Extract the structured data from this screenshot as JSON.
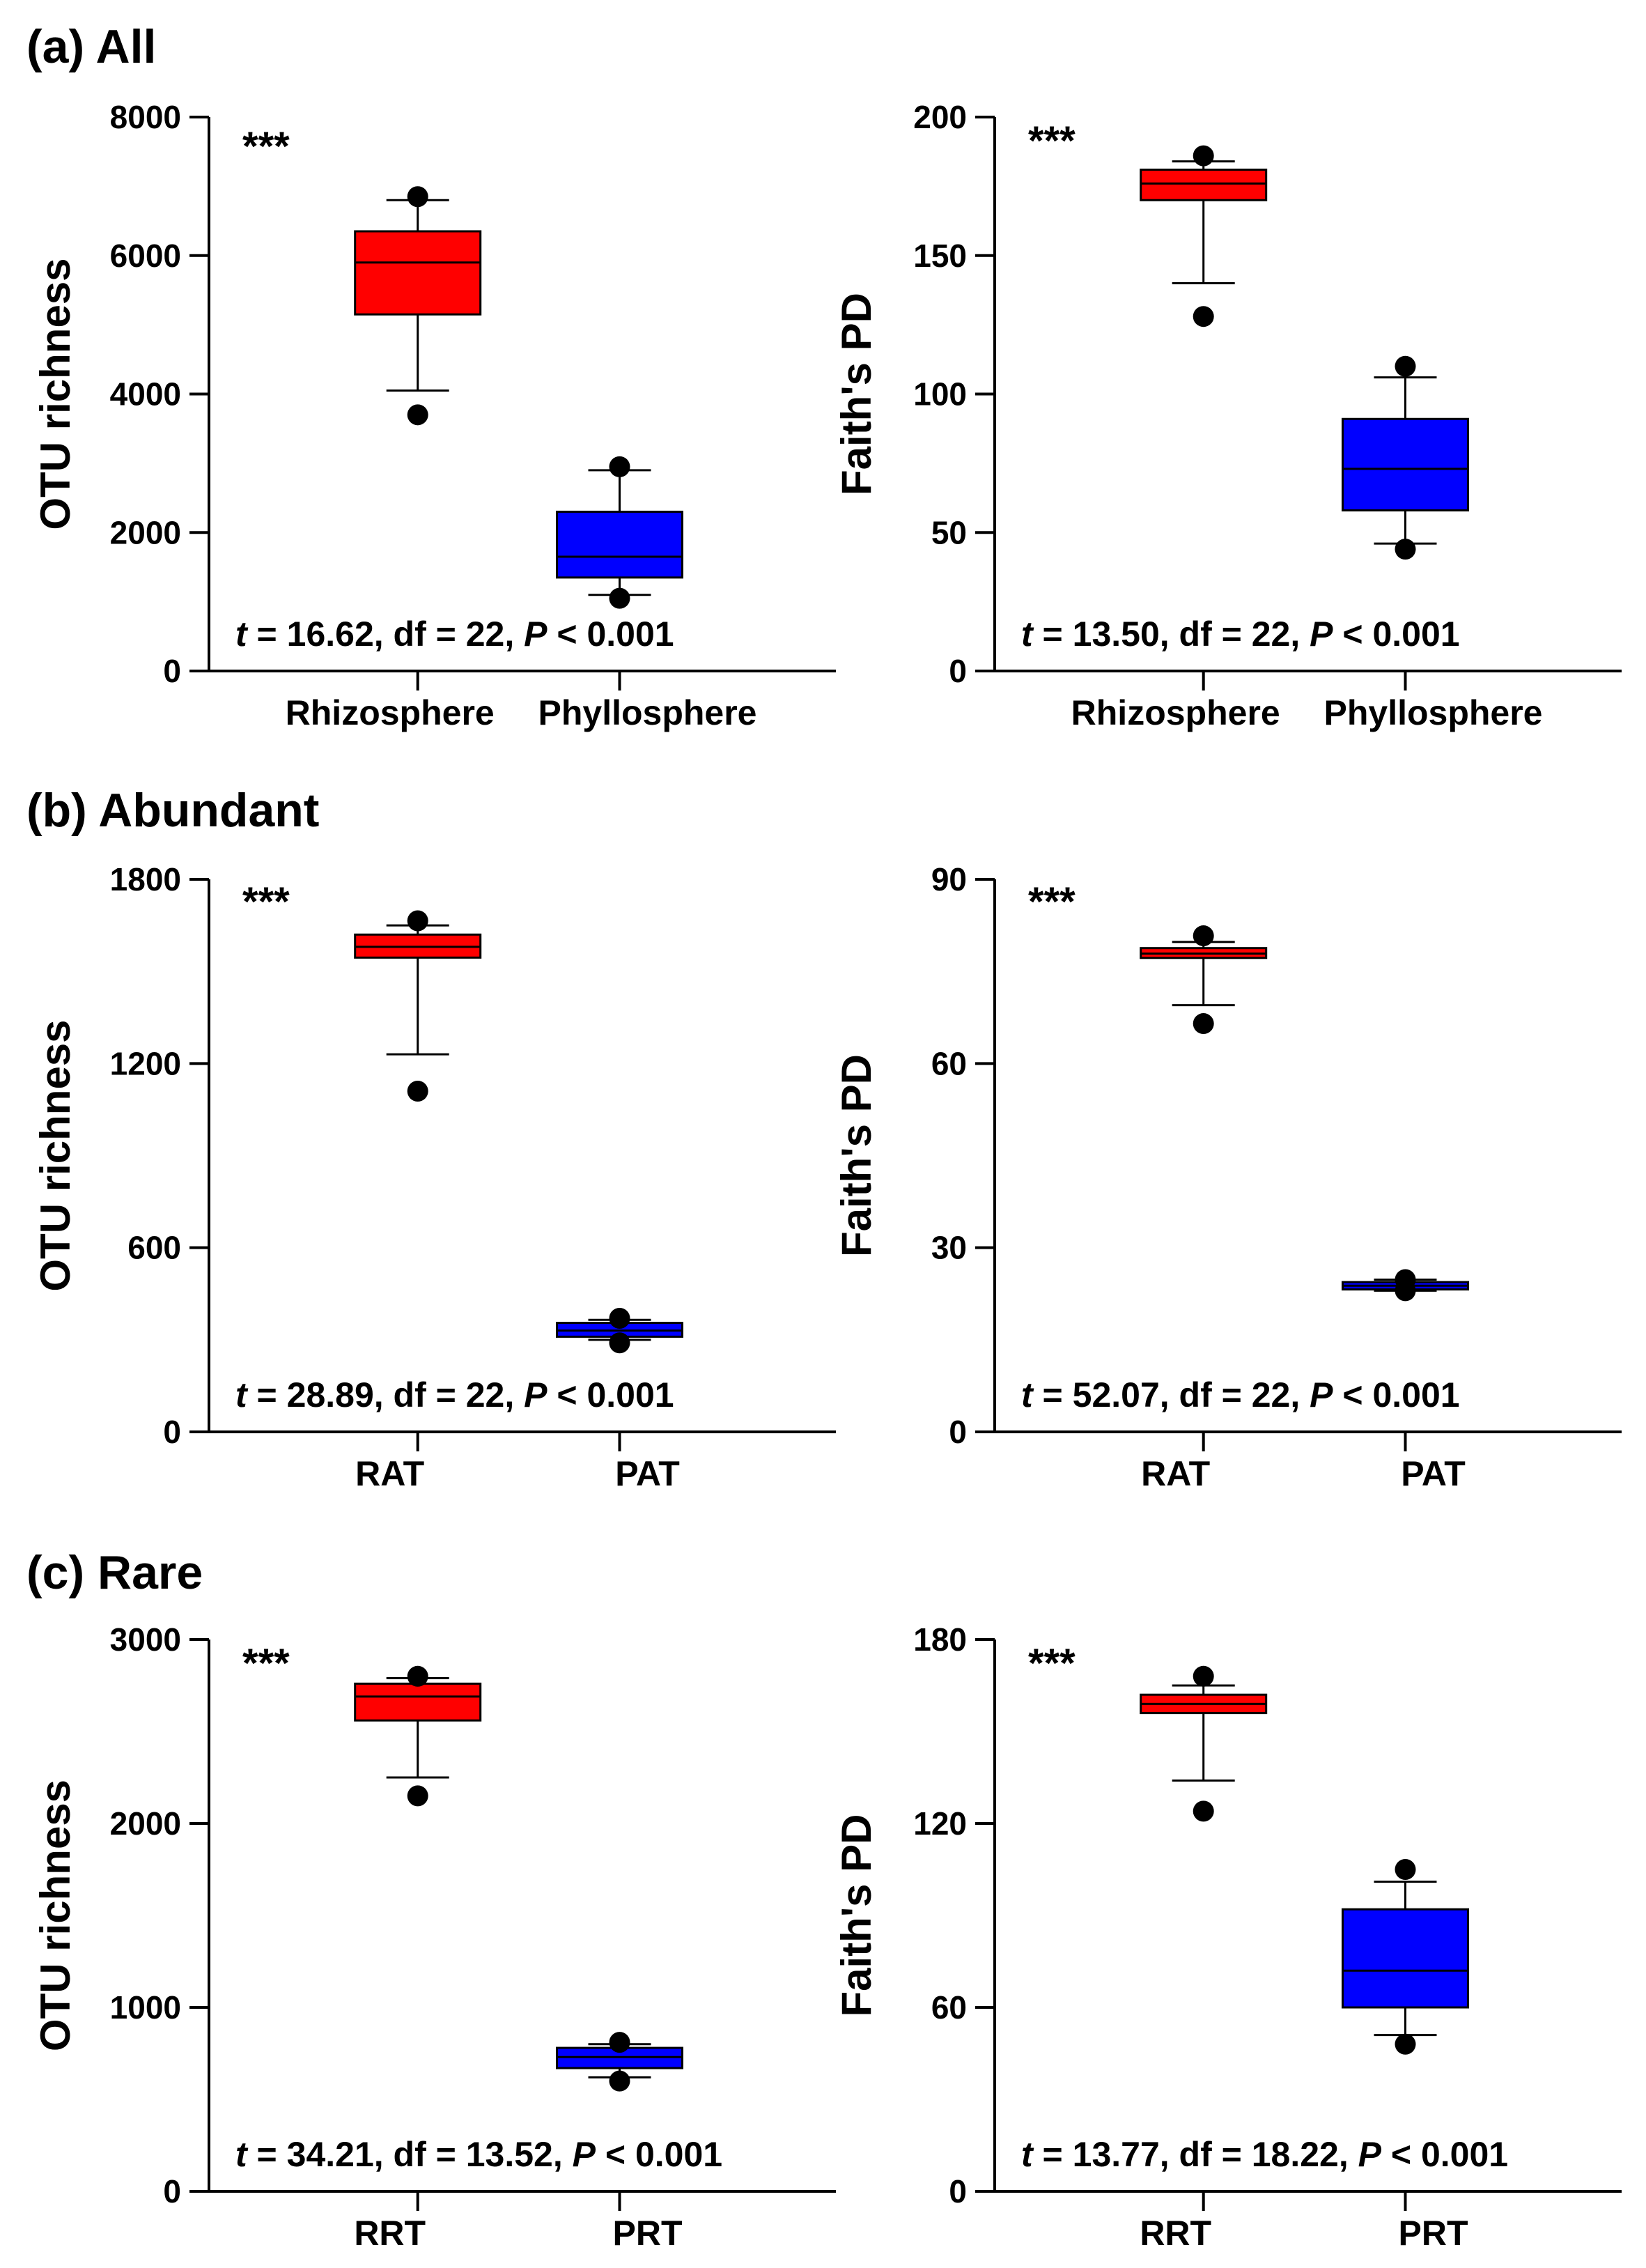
{
  "panels": [
    {
      "id": "a",
      "title": "(a) All"
    },
    {
      "id": "b",
      "title": "(b) Abundant"
    },
    {
      "id": "c",
      "title": "(c) Rare"
    }
  ],
  "colors": {
    "group1": "#ff0000",
    "group2": "#0000ff",
    "line": "#000000"
  },
  "chart_data": [
    {
      "type": "box",
      "panel": "a",
      "ylabel": "OTU richness",
      "ylim": [
        0,
        8000
      ],
      "yticks": [
        0,
        2000,
        4000,
        6000,
        8000
      ],
      "categories": [
        "Rhizosphere",
        "Phyllosphere"
      ],
      "boxes": [
        {
          "q1": 5150,
          "median": 5900,
          "q3": 6350,
          "whisker_low": 4050,
          "whisker_high": 6800,
          "outliers": [
            3700,
            6850
          ]
        },
        {
          "q1": 1350,
          "median": 1650,
          "q3": 2300,
          "whisker_low": 1100,
          "whisker_high": 2900,
          "outliers": [
            1050,
            2950
          ]
        }
      ],
      "significance": "***",
      "stat": {
        "t": "t",
        "t_value": " = 16.62, df = 22, ",
        "p": "P",
        "p_value": " < 0.001"
      }
    },
    {
      "type": "box",
      "panel": "a",
      "ylabel": "Faith's PD",
      "ylim": [
        0,
        200
      ],
      "yticks": [
        0,
        50,
        100,
        150,
        200
      ],
      "categories": [
        "Rhizosphere",
        "Phyllosphere"
      ],
      "boxes": [
        {
          "q1": 170,
          "median": 176,
          "q3": 181,
          "whisker_low": 140,
          "whisker_high": 184,
          "outliers": [
            128,
            186
          ]
        },
        {
          "q1": 58,
          "median": 73,
          "q3": 91,
          "whisker_low": 46,
          "whisker_high": 106,
          "outliers": [
            44,
            110
          ]
        }
      ],
      "significance": "***",
      "stat": {
        "t": "t",
        "t_value": " = 13.50, df = 22, ",
        "p": "P",
        "p_value": " < 0.001"
      }
    },
    {
      "type": "box",
      "panel": "b",
      "ylabel": "OTU richness",
      "ylim": [
        0,
        1800
      ],
      "yticks": [
        0,
        600,
        1200,
        1800
      ],
      "categories": [
        "RAT",
        "PAT"
      ],
      "boxes": [
        {
          "q1": 1545,
          "median": 1580,
          "q3": 1620,
          "whisker_low": 1230,
          "whisker_high": 1650,
          "outliers": [
            1110,
            1665
          ]
        },
        {
          "q1": 310,
          "median": 330,
          "q3": 355,
          "whisker_low": 300,
          "whisker_high": 365,
          "outliers": [
            290,
            370
          ]
        }
      ],
      "significance": "***",
      "stat": {
        "t": "t",
        "t_value": " = 28.89, df = 22, ",
        "p": "P",
        "p_value": " < 0.001"
      }
    },
    {
      "type": "box",
      "panel": "b",
      "ylabel": "Faith's PD",
      "ylim": [
        0,
        90
      ],
      "yticks": [
        0,
        30,
        60,
        90
      ],
      "categories": [
        "RAT",
        "PAT"
      ],
      "boxes": [
        {
          "q1": 77.2,
          "median": 77.9,
          "q3": 78.8,
          "whisker_low": 69.5,
          "whisker_high": 79.8,
          "outliers": [
            66.5,
            80.8
          ]
        },
        {
          "q1": 23.2,
          "median": 23.8,
          "q3": 24.4,
          "whisker_low": 23.0,
          "whisker_high": 24.8,
          "outliers": [
            23.0,
            24.8
          ]
        }
      ],
      "significance": "***",
      "stat": {
        "t": "t",
        "t_value": " = 52.07, df = 22, ",
        "p": "P",
        "p_value": " < 0.001"
      }
    },
    {
      "type": "box",
      "panel": "c",
      "ylabel": "OTU richness",
      "ylim": [
        0,
        3000
      ],
      "yticks": [
        0,
        1000,
        2000,
        3000
      ],
      "categories": [
        "RRT",
        "PRT"
      ],
      "boxes": [
        {
          "q1": 2560,
          "median": 2690,
          "q3": 2760,
          "whisker_low": 2250,
          "whisker_high": 2790,
          "outliers": [
            2150,
            2800
          ]
        },
        {
          "q1": 670,
          "median": 730,
          "q3": 780,
          "whisker_low": 620,
          "whisker_high": 800,
          "outliers": [
            600,
            810
          ]
        }
      ],
      "significance": "***",
      "stat": {
        "t": "t",
        "t_value": " = 34.21, df = 13.52, ",
        "p": "P",
        "p_value": " < 0.001"
      }
    },
    {
      "type": "box",
      "panel": "c",
      "ylabel": "Faith's PD",
      "ylim": [
        0,
        180
      ],
      "yticks": [
        0,
        60,
        120,
        180
      ],
      "categories": [
        "RRT",
        "PRT"
      ],
      "boxes": [
        {
          "q1": 156,
          "median": 159,
          "q3": 162,
          "whisker_low": 134,
          "whisker_high": 165,
          "outliers": [
            124,
            168
          ]
        },
        {
          "q1": 60,
          "median": 72,
          "q3": 92,
          "whisker_low": 51,
          "whisker_high": 101,
          "outliers": [
            48,
            105
          ]
        }
      ],
      "significance": "***",
      "stat": {
        "t": "t",
        "t_value": " = 13.77, df = 18.22, ",
        "p": "P",
        "p_value": " < 0.001"
      }
    }
  ]
}
